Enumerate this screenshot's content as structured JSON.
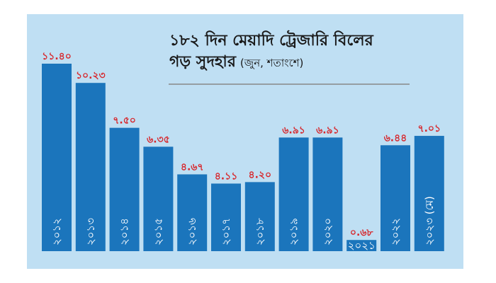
{
  "chart_data": {
    "type": "bar",
    "title_line1": "১৮২ দিন মেয়াদি ট্রেজারি বিলের",
    "title_line2": "গড় সুদহার",
    "unit": "(জুন, শতাংশে)",
    "categories": [
      "২০১২",
      "২০১৩",
      "২০১৪",
      "২০১৫",
      "২০১৬",
      "২০১৭",
      "২০১৮",
      "২০১৯",
      "২০২০",
      "২০২১",
      "২০২২",
      "২০২৩ (মে)"
    ],
    "values": [
      11.4,
      10.23,
      7.5,
      6.35,
      4.67,
      4.11,
      4.2,
      6.91,
      6.91,
      0.68,
      6.44,
      7.01
    ],
    "value_labels": [
      "১১.৪০",
      "১০.২৩",
      "৭.৫০",
      "৬.৩৫",
      "৪.৬৭",
      "৪.১১",
      "৪.২০",
      "৬.৯১",
      "৬.৯১",
      "০.৬৮",
      "৬.৪৪",
      "৭.০১"
    ],
    "ylim": [
      0,
      11.4
    ],
    "grid": false,
    "colors": {
      "background": "#bfdff3",
      "bar": "#1b75bc",
      "value_label": "#d7262b",
      "category_label": "#ffffff",
      "title": "#1a1a1a",
      "rule": "#888888"
    }
  }
}
